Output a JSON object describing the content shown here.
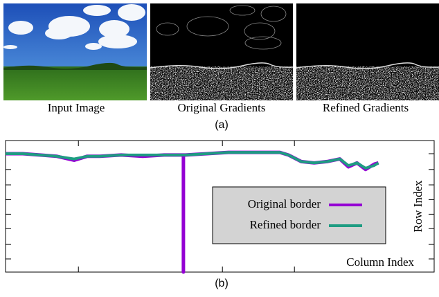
{
  "figure": {
    "panels": [
      {
        "caption": "Input Image"
      },
      {
        "caption": "Original Gradients"
      },
      {
        "caption": "Refined Gradients"
      }
    ],
    "label_a": "(a)",
    "label_b": "(b)"
  },
  "chart_data": {
    "type": "line",
    "x_label": "Column Index",
    "y_label": "Row Index",
    "x": [
      0,
      4,
      8,
      12,
      16,
      19,
      22,
      27,
      32,
      37,
      41,
      41.5,
      41.5,
      41.5,
      42,
      47,
      52,
      57,
      62,
      64,
      66,
      69,
      72,
      75,
      78,
      80,
      82,
      84,
      86,
      87
    ],
    "series": [
      {
        "name": "Original border",
        "color": "#9400d3",
        "values": [
          10,
          10,
          11,
          12,
          15,
          12,
          12,
          11,
          12,
          11,
          11,
          11,
          100,
          11,
          11,
          10,
          9,
          9,
          9,
          9,
          11,
          16,
          17,
          16,
          14,
          20,
          17,
          22,
          18,
          17
        ]
      },
      {
        "name": "Refined border",
        "color": "#1e9c82",
        "values": [
          10,
          10,
          11,
          12,
          14,
          12,
          12,
          11,
          11,
          11,
          11,
          11,
          11,
          11,
          11,
          10,
          9,
          9,
          9,
          9,
          11,
          16,
          17,
          16,
          14,
          19,
          17,
          21,
          19,
          17
        ]
      }
    ],
    "xlim": [
      0,
      100
    ],
    "ylim": [
      100,
      0
    ],
    "xticks": [
      17,
      50.6,
      67.4
    ],
    "yticks": [
      10,
      22,
      33.7,
      45,
      56,
      67,
      79,
      90
    ],
    "legend": "center-right"
  }
}
